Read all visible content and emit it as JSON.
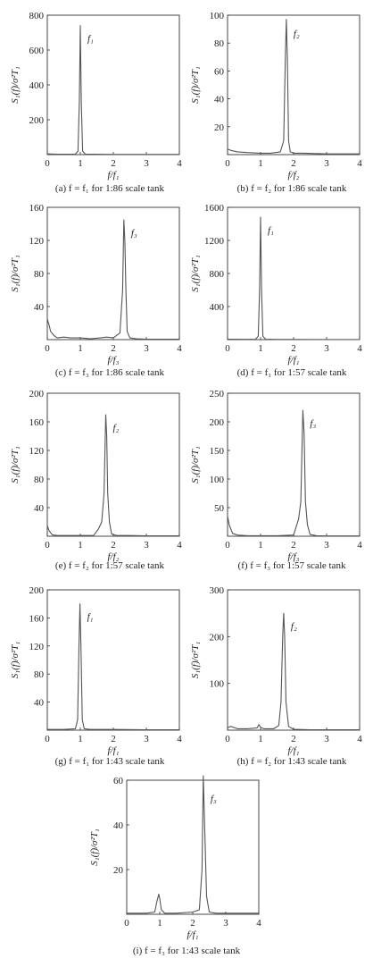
{
  "chart_data": [
    {
      "id": "a",
      "type": "line",
      "caption": "(a) f = f₁ for 1:86 scale tank",
      "ylabel": "S₁(f)/σ²T₁",
      "xlabel": "f/f₁",
      "peak_label": "f₁",
      "xlim": [
        0,
        4
      ],
      "ylim": [
        0,
        800
      ],
      "xticks": [
        0,
        1,
        2,
        3,
        4
      ],
      "yticks": [
        200,
        400,
        600,
        800
      ],
      "x": [
        0,
        0.3,
        0.6,
        0.85,
        0.93,
        0.97,
        1.0,
        1.03,
        1.07,
        1.15,
        1.4,
        2,
        3,
        4
      ],
      "y": [
        4,
        2,
        2,
        3,
        20,
        300,
        740,
        300,
        20,
        3,
        2,
        1,
        1,
        1
      ]
    },
    {
      "id": "b",
      "type": "line",
      "caption": "(b) f = f₂ for 1:86 scale tank",
      "ylabel": "S₁(f)/σ²T₁",
      "xlabel": "f/f₂",
      "peak_label": "f₂",
      "xlim": [
        0,
        4
      ],
      "ylim": [
        0,
        100
      ],
      "xticks": [
        0,
        1,
        2,
        3,
        4
      ],
      "yticks": [
        20,
        40,
        60,
        80,
        100
      ],
      "x": [
        0,
        0.1,
        0.3,
        0.6,
        1.0,
        1.3,
        1.6,
        1.7,
        1.75,
        1.78,
        1.81,
        1.85,
        1.9,
        2.0,
        2.3,
        3,
        4
      ],
      "y": [
        4,
        3,
        2,
        1.5,
        1,
        1,
        2,
        10,
        70,
        97,
        70,
        10,
        2,
        1,
        1,
        0.5,
        0.5
      ]
    },
    {
      "id": "c",
      "type": "line",
      "caption": "(c) f = f₃ for 1:86 scale tank",
      "ylabel": "S₁(f)/σ²T₁",
      "xlabel": "f/f₃",
      "peak_label": "f₃",
      "xlim": [
        0,
        4
      ],
      "ylim": [
        0,
        160
      ],
      "xticks": [
        0,
        1,
        2,
        3,
        4
      ],
      "yticks": [
        40,
        80,
        120,
        160
      ],
      "x": [
        0,
        0.05,
        0.1,
        0.2,
        0.3,
        0.5,
        0.7,
        1.0,
        1.3,
        1.6,
        1.8,
        2.0,
        2.2,
        2.28,
        2.32,
        2.35,
        2.38,
        2.42,
        2.5,
        2.7,
        3,
        4
      ],
      "y": [
        25,
        18,
        10,
        5,
        2,
        3,
        2,
        2,
        1,
        2,
        3,
        2,
        8,
        60,
        145,
        120,
        60,
        10,
        2,
        1,
        0.5,
        0.5
      ]
    },
    {
      "id": "d",
      "type": "line",
      "caption": "(d) f = f₁ for 1:57 scale tank",
      "ylabel": "S₁(f)/σ²T₁",
      "xlabel": "f/f₁",
      "peak_label": "f₁",
      "xlim": [
        0,
        4
      ],
      "ylim": [
        0,
        1600
      ],
      "xticks": [
        0,
        1,
        2,
        3,
        4
      ],
      "yticks": [
        400,
        800,
        1200,
        1600
      ],
      "x": [
        0,
        0.5,
        0.85,
        0.93,
        0.97,
        1.0,
        1.03,
        1.07,
        1.15,
        1.5,
        2,
        3,
        4
      ],
      "y": [
        5,
        3,
        5,
        40,
        600,
        1480,
        600,
        40,
        5,
        2,
        2,
        1,
        1
      ]
    },
    {
      "id": "e",
      "type": "line",
      "caption": "(e) f = f₂ for 1:57 scale tank",
      "ylabel": "S₁(f)/σ²T₁",
      "xlabel": "f/f₂",
      "peak_label": "f₂",
      "xlim": [
        0,
        4
      ],
      "ylim": [
        0,
        200
      ],
      "xticks": [
        0,
        1,
        2,
        3,
        4
      ],
      "yticks": [
        40,
        80,
        120,
        160,
        200
      ],
      "x": [
        0,
        0.05,
        0.15,
        0.3,
        0.6,
        1.0,
        1.4,
        1.55,
        1.65,
        1.72,
        1.77,
        1.8,
        1.83,
        1.88,
        1.95,
        2.1,
        2.5,
        3,
        4
      ],
      "y": [
        15,
        8,
        2,
        1,
        1,
        1,
        1,
        10,
        20,
        60,
        170,
        140,
        60,
        20,
        3,
        1,
        1,
        0.5,
        0.5
      ]
    },
    {
      "id": "f",
      "type": "line",
      "caption": "(f) f = f₃ for 1:57 scale tank",
      "ylabel": "S₁(f)/σ²T₁",
      "xlabel": "f/f₃",
      "peak_label": "f₃",
      "xlim": [
        0,
        4
      ],
      "ylim": [
        0,
        250
      ],
      "xticks": [
        0,
        1,
        2,
        3,
        4
      ],
      "yticks": [
        50,
        100,
        150,
        200,
        250
      ],
      "x": [
        0,
        0.05,
        0.15,
        0.3,
        0.6,
        1.0,
        1.5,
        2.0,
        2.15,
        2.22,
        2.28,
        2.32,
        2.36,
        2.42,
        2.5,
        2.7,
        3,
        4
      ],
      "y": [
        35,
        20,
        5,
        2,
        1,
        1,
        1,
        2,
        30,
        60,
        220,
        180,
        60,
        20,
        3,
        1,
        0.5,
        0.5
      ]
    },
    {
      "id": "g",
      "type": "line",
      "caption": "(g) f = f₁ for 1:43 scale tank",
      "ylabel": "S₁(f)/σ²T₁",
      "xlabel": "f/f₁",
      "peak_label": "f₁",
      "xlim": [
        0,
        4
      ],
      "ylim": [
        0,
        200
      ],
      "xticks": [
        0,
        1,
        2,
        3,
        4
      ],
      "yticks": [
        40,
        80,
        120,
        160,
        200
      ],
      "x": [
        0,
        0.5,
        0.85,
        0.92,
        0.96,
        0.99,
        1.02,
        1.06,
        1.12,
        1.3,
        2,
        3,
        4
      ],
      "y": [
        1,
        1,
        2,
        15,
        120,
        180,
        120,
        15,
        2,
        1,
        1,
        0.5,
        0.5
      ]
    },
    {
      "id": "h",
      "type": "line",
      "caption": "(h) f = f₂ for 1:43 scale tank",
      "ylabel": "S₁(f)/σ²T₁",
      "xlabel": "f/f₁",
      "peak_label": "f₂",
      "xlim": [
        0,
        4
      ],
      "ylim": [
        0,
        300
      ],
      "xticks": [
        0,
        1,
        2,
        3,
        4
      ],
      "yticks": [
        100,
        200,
        300
      ],
      "x": [
        0,
        0.1,
        0.3,
        0.6,
        0.9,
        0.95,
        1.0,
        1.1,
        1.4,
        1.55,
        1.62,
        1.67,
        1.7,
        1.73,
        1.77,
        1.85,
        2.0,
        2.5,
        3,
        4
      ],
      "y": [
        5,
        8,
        3,
        3,
        5,
        12,
        6,
        3,
        3,
        10,
        60,
        200,
        250,
        200,
        60,
        8,
        2,
        1,
        1,
        1
      ]
    },
    {
      "id": "i",
      "type": "line",
      "caption": "(i) f = f₃ for 1:43 scale tank",
      "ylabel": "S₁(f)/σ²T₁",
      "xlabel": "f/f₁",
      "peak_label": "f₃",
      "xlim": [
        0,
        4
      ],
      "ylim": [
        0,
        60
      ],
      "xticks": [
        0,
        1,
        2,
        3,
        4
      ],
      "yticks": [
        20,
        40,
        60
      ],
      "x": [
        0,
        0.3,
        0.6,
        0.85,
        0.92,
        0.97,
        1.0,
        1.05,
        1.15,
        1.5,
        2.0,
        2.2,
        2.28,
        2.32,
        2.36,
        2.42,
        2.5,
        2.7,
        3,
        4
      ],
      "y": [
        0.5,
        0.5,
        0.5,
        1,
        6,
        9,
        7,
        2,
        0.5,
        0.5,
        1,
        2,
        20,
        62,
        40,
        8,
        1,
        0.5,
        0.5,
        0.5
      ]
    }
  ]
}
